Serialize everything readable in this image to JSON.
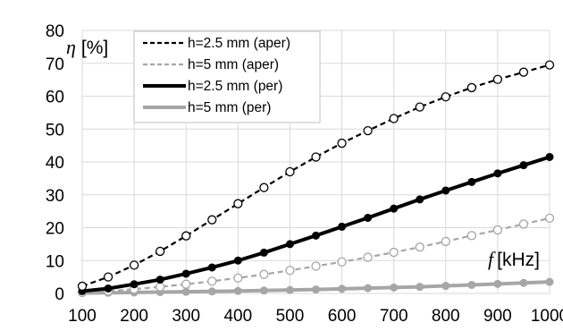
{
  "chart_data": {
    "type": "line",
    "x": [
      100,
      150,
      200,
      250,
      300,
      350,
      400,
      450,
      500,
      550,
      600,
      650,
      700,
      750,
      800,
      850,
      900,
      950,
      1000
    ],
    "xlim": [
      100,
      1000
    ],
    "ylim": [
      0,
      80
    ],
    "xticks": [
      100,
      200,
      300,
      400,
      500,
      600,
      700,
      800,
      900,
      1000
    ],
    "yticks": [
      0,
      10,
      20,
      30,
      40,
      50,
      60,
      70,
      80
    ],
    "grid": true,
    "legend_position": "top-left",
    "ylabel": {
      "symbol": "η",
      "unit": "[%]"
    },
    "xlabel": {
      "symbol": "f",
      "unit": "[kHz]"
    },
    "series": [
      {
        "name": "h=2.5 mm (aper)",
        "color": "#000000",
        "dashed": true,
        "markers": true,
        "values": [
          2.2,
          5.0,
          8.6,
          12.8,
          17.5,
          22.4,
          27.3,
          32.2,
          37.0,
          41.5,
          45.7,
          49.5,
          53.2,
          56.7,
          59.8,
          62.6,
          65.1,
          67.3,
          69.5
        ]
      },
      {
        "name": "h=5 mm (aper)",
        "color": "#a6a6a6",
        "dashed": true,
        "markers": true,
        "values": [
          0.3,
          0.7,
          1.3,
          2.0,
          2.8,
          3.7,
          4.7,
          5.8,
          7.0,
          8.3,
          9.6,
          11.0,
          12.5,
          14.1,
          15.8,
          17.6,
          19.3,
          21.1,
          22.9
        ]
      },
      {
        "name": "h=2.5 mm (per)",
        "color": "#000000",
        "dashed": false,
        "markers": true,
        "values": [
          0.7,
          1.5,
          2.8,
          4.2,
          6.0,
          7.9,
          10.0,
          12.4,
          15.0,
          17.6,
          20.3,
          23.0,
          25.8,
          28.6,
          31.3,
          33.9,
          36.5,
          39.0,
          41.5
        ]
      },
      {
        "name": "h=5 mm (per)",
        "color": "#a6a6a6",
        "dashed": false,
        "markers": true,
        "values": [
          0.1,
          0.2,
          0.3,
          0.4,
          0.5,
          0.6,
          0.75,
          0.9,
          1.05,
          1.2,
          1.4,
          1.6,
          1.8,
          2.0,
          2.3,
          2.6,
          2.9,
          3.2,
          3.5
        ]
      }
    ]
  }
}
